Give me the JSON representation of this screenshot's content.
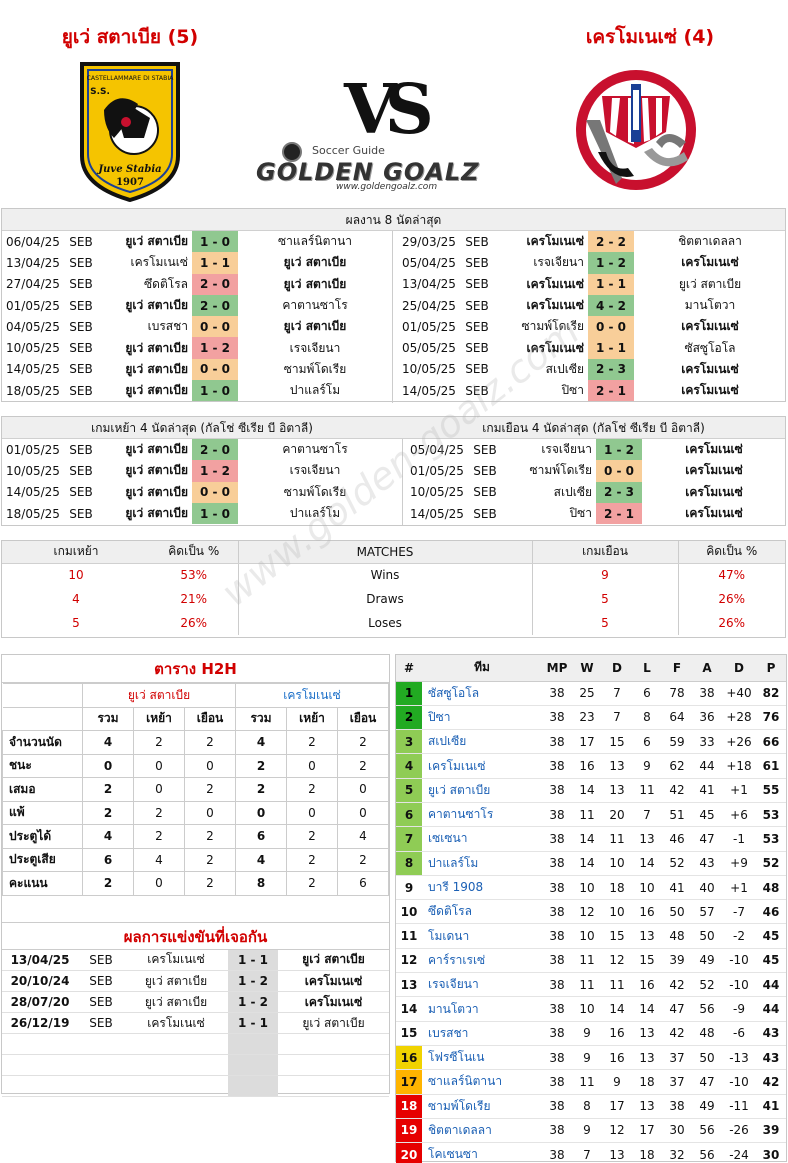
{
  "header": {
    "home_title": "ยูเว่ สตาเบีย (5)",
    "away_title": "เครโมเนเซ่ (4)",
    "home_logo_text_top": "CASTELLAMMARE DI STABIA",
    "home_logo_text_ss": "S.S.",
    "home_logo_text_name": "Juve Stabia",
    "home_logo_text_year": "1907",
    "vs": "VS",
    "brand_sub": "Soccer Guide",
    "brand_main": "GOLDEN GOALZ",
    "brand_url": "www.goldengoalz.com"
  },
  "colors": {
    "win": "#90c890",
    "draw": "#f8ce99",
    "loss": "#f2a1a1",
    "accent_red": "#d10000",
    "link_blue": "#1a5fb4"
  },
  "last8": {
    "title": "ผลงาน 8 นัดล่าสุด",
    "home": [
      {
        "date": "06/04/25",
        "lg": "SEB",
        "t1": "ยูเว่ สตาเบีย",
        "sc": "1 - 0",
        "t2": "ซาแลร์นิตานา",
        "res": "win",
        "b": 1
      },
      {
        "date": "13/04/25",
        "lg": "SEB",
        "t1": "เครโมเนเซ่",
        "sc": "1 - 1",
        "t2": "ยูเว่ สตาเบีย",
        "res": "draw",
        "b": 2
      },
      {
        "date": "27/04/25",
        "lg": "SEB",
        "t1": "ซึดติโรล",
        "sc": "2 - 0",
        "t2": "ยูเว่ สตาเบีย",
        "res": "loss",
        "b": 2
      },
      {
        "date": "01/05/25",
        "lg": "SEB",
        "t1": "ยูเว่ สตาเบีย",
        "sc": "2 - 0",
        "t2": "คาตานซาโร",
        "res": "win",
        "b": 1
      },
      {
        "date": "04/05/25",
        "lg": "SEB",
        "t1": "เบรสชา",
        "sc": "0 - 0",
        "t2": "ยูเว่ สตาเบีย",
        "res": "draw",
        "b": 2
      },
      {
        "date": "10/05/25",
        "lg": "SEB",
        "t1": "ยูเว่ สตาเบีย",
        "sc": "1 - 2",
        "t2": "เรจเจียนา",
        "res": "loss",
        "b": 1
      },
      {
        "date": "14/05/25",
        "lg": "SEB",
        "t1": "ยูเว่ สตาเบีย",
        "sc": "0 - 0",
        "t2": "ซามพ์โดเรีย",
        "res": "draw",
        "b": 1
      },
      {
        "date": "18/05/25",
        "lg": "SEB",
        "t1": "ยูเว่ สตาเบีย",
        "sc": "1 - 0",
        "t2": "ปาแลร์โม",
        "res": "win",
        "b": 1
      }
    ],
    "away": [
      {
        "date": "29/03/25",
        "lg": "SEB",
        "t1": "เครโมเนเซ่",
        "sc": "2 - 2",
        "t2": "ชิตตาเดลลา",
        "res": "draw",
        "b": 1
      },
      {
        "date": "05/04/25",
        "lg": "SEB",
        "t1": "เรจเจียนา",
        "sc": "1 - 2",
        "t2": "เครโมเนเซ่",
        "res": "win",
        "b": 2
      },
      {
        "date": "13/04/25",
        "lg": "SEB",
        "t1": "เครโมเนเซ่",
        "sc": "1 - 1",
        "t2": "ยูเว่ สตาเบีย",
        "res": "draw",
        "b": 1
      },
      {
        "date": "25/04/25",
        "lg": "SEB",
        "t1": "เครโมเนเซ่",
        "sc": "4 - 2",
        "t2": "มานโตวา",
        "res": "win",
        "b": 1
      },
      {
        "date": "01/05/25",
        "lg": "SEB",
        "t1": "ซามพ์โดเรีย",
        "sc": "0 - 0",
        "t2": "เครโมเนเซ่",
        "res": "draw",
        "b": 2
      },
      {
        "date": "05/05/25",
        "lg": "SEB",
        "t1": "เครโมเนเซ่",
        "sc": "1 - 1",
        "t2": "ซัสซูโอโล",
        "res": "draw",
        "b": 1
      },
      {
        "date": "10/05/25",
        "lg": "SEB",
        "t1": "สเปเซีย",
        "sc": "2 - 3",
        "t2": "เครโมเนเซ่",
        "res": "win",
        "b": 2
      },
      {
        "date": "14/05/25",
        "lg": "SEB",
        "t1": "ปิซา",
        "sc": "2 - 1",
        "t2": "เครโมเนเซ่",
        "res": "loss",
        "b": 2
      }
    ]
  },
  "last4": {
    "home_title": "เกมเหย้า 4 นัดล่าสุด (กัลโช่ ซีเรีย บี อิตาลี)",
    "away_title": "เกมเยือน 4 นัดล่าสุด (กัลโช่ ซีเรีย บี อิตาลี)",
    "home": [
      {
        "date": "01/05/25",
        "lg": "SEB",
        "t1": "ยูเว่ สตาเบีย",
        "sc": "2 - 0",
        "t2": "คาตานซาโร",
        "res": "win",
        "b": 1
      },
      {
        "date": "10/05/25",
        "lg": "SEB",
        "t1": "ยูเว่ สตาเบีย",
        "sc": "1 - 2",
        "t2": "เรจเจียนา",
        "res": "loss",
        "b": 1
      },
      {
        "date": "14/05/25",
        "lg": "SEB",
        "t1": "ยูเว่ สตาเบีย",
        "sc": "0 - 0",
        "t2": "ซามพ์โดเรีย",
        "res": "draw",
        "b": 1
      },
      {
        "date": "18/05/25",
        "lg": "SEB",
        "t1": "ยูเว่ สตาเบีย",
        "sc": "1 - 0",
        "t2": "ปาแลร์โม",
        "res": "win",
        "b": 1
      }
    ],
    "away": [
      {
        "date": "05/04/25",
        "lg": "SEB",
        "t1": "เรจเจียนา",
        "sc": "1 - 2",
        "t2": "เครโมเนเซ่",
        "res": "win",
        "b": 2
      },
      {
        "date": "01/05/25",
        "lg": "SEB",
        "t1": "ซามพ์โดเรีย",
        "sc": "0 - 0",
        "t2": "เครโมเนเซ่",
        "res": "draw",
        "b": 2
      },
      {
        "date": "10/05/25",
        "lg": "SEB",
        "t1": "สเปเซีย",
        "sc": "2 - 3",
        "t2": "เครโมเนเซ่",
        "res": "win",
        "b": 2
      },
      {
        "date": "14/05/25",
        "lg": "SEB",
        "t1": "ปิซา",
        "sc": "2 - 1",
        "t2": "เครโมเนเซ่",
        "res": "loss",
        "b": 2
      }
    ]
  },
  "summary": {
    "headers": [
      "เกมเหย้า",
      "คิดเป็น %",
      "MATCHES",
      "เกมเยือน",
      "คิดเป็น %"
    ],
    "rows": [
      {
        "hn": "10",
        "hp": "53%",
        "label": "Wins",
        "an": "9",
        "ap": "47%"
      },
      {
        "hn": "4",
        "hp": "21%",
        "label": "Draws",
        "an": "5",
        "ap": "26%"
      },
      {
        "hn": "5",
        "hp": "26%",
        "label": "Loses",
        "an": "5",
        "ap": "26%"
      }
    ]
  },
  "h2h": {
    "title": "ตาราง H2H",
    "home_name": "ยูเว่ สตาเบีย",
    "away_name": "เครโมเนเซ่",
    "cols": [
      "รวม",
      "เหย้า",
      "เยือน",
      "รวม",
      "เหย้า",
      "เยือน"
    ],
    "rows": [
      {
        "label": "จำนวนนัด",
        "v": [
          "4",
          "2",
          "2",
          "4",
          "2",
          "2"
        ]
      },
      {
        "label": "ชนะ",
        "v": [
          "0",
          "0",
          "0",
          "2",
          "0",
          "2"
        ]
      },
      {
        "label": "เสมอ",
        "v": [
          "2",
          "0",
          "2",
          "2",
          "2",
          "0"
        ]
      },
      {
        "label": "แพ้",
        "v": [
          "2",
          "2",
          "0",
          "0",
          "0",
          "0"
        ]
      },
      {
        "label": "ประตูได้",
        "v": [
          "4",
          "2",
          "2",
          "6",
          "2",
          "4"
        ]
      },
      {
        "label": "ประตูเสีย",
        "v": [
          "6",
          "4",
          "2",
          "4",
          "2",
          "2"
        ]
      },
      {
        "label": "คะแนน",
        "v": [
          "2",
          "0",
          "2",
          "8",
          "2",
          "6"
        ]
      }
    ],
    "meet_title": "ผลการแข่งขันที่เจอกัน",
    "meetings": [
      {
        "date": "13/04/25",
        "lg": "SEB",
        "t1": "เครโมเนเซ่",
        "sc": "1 - 1",
        "t2": "ยูเว่ สตาเบีย",
        "b": 2
      },
      {
        "date": "20/10/24",
        "lg": "SEB",
        "t1": "ยูเว่ สตาเบีย",
        "sc": "1 - 2",
        "t2": "เครโมเนเซ่",
        "b": 2
      },
      {
        "date": "28/07/20",
        "lg": "SEB",
        "t1": "ยูเว่ สตาเบีย",
        "sc": "1 - 2",
        "t2": "เครโมเนเซ่",
        "b": 2
      },
      {
        "date": "26/12/19",
        "lg": "SEB",
        "t1": "เครโมเนเซ่",
        "sc": "1 - 1",
        "t2": "ยูเว่ สตาเบีย",
        "b": 0
      }
    ]
  },
  "standings": {
    "headers": [
      "#",
      "ทีม",
      "MP",
      "W",
      "D",
      "L",
      "F",
      "A",
      "D",
      "P"
    ],
    "rows": [
      {
        "r": "1",
        "team": "ซัสซูโอโล",
        "mp": "38",
        "w": "25",
        "d": "7",
        "l": "6",
        "f": "78",
        "a": "38",
        "gd": "+40",
        "p": "82",
        "zone": "z-g"
      },
      {
        "r": "2",
        "team": "ปิซา",
        "mp": "38",
        "w": "23",
        "d": "7",
        "l": "8",
        "f": "64",
        "a": "36",
        "gd": "+28",
        "p": "76",
        "zone": "z-g"
      },
      {
        "r": "3",
        "team": "สเปเซีย",
        "mp": "38",
        "w": "17",
        "d": "15",
        "l": "6",
        "f": "59",
        "a": "33",
        "gd": "+26",
        "p": "66",
        "zone": "z-lg"
      },
      {
        "r": "4",
        "team": "เครโมเนเซ่",
        "mp": "38",
        "w": "16",
        "d": "13",
        "l": "9",
        "f": "62",
        "a": "44",
        "gd": "+18",
        "p": "61",
        "zone": "z-lg"
      },
      {
        "r": "5",
        "team": "ยูเว่ สตาเบีย",
        "mp": "38",
        "w": "14",
        "d": "13",
        "l": "11",
        "f": "42",
        "a": "41",
        "gd": "+1",
        "p": "55",
        "zone": "z-lg"
      },
      {
        "r": "6",
        "team": "คาตานซาโร",
        "mp": "38",
        "w": "11",
        "d": "20",
        "l": "7",
        "f": "51",
        "a": "45",
        "gd": "+6",
        "p": "53",
        "zone": "z-lg"
      },
      {
        "r": "7",
        "team": "เซเซนา",
        "mp": "38",
        "w": "14",
        "d": "11",
        "l": "13",
        "f": "46",
        "a": "47",
        "gd": "-1",
        "p": "53",
        "zone": "z-lg"
      },
      {
        "r": "8",
        "team": "ปาแลร์โม",
        "mp": "38",
        "w": "14",
        "d": "10",
        "l": "14",
        "f": "52",
        "a": "43",
        "gd": "+9",
        "p": "52",
        "zone": "z-lg"
      },
      {
        "r": "9",
        "team": "บารี 1908",
        "mp": "38",
        "w": "10",
        "d": "18",
        "l": "10",
        "f": "41",
        "a": "40",
        "gd": "+1",
        "p": "48",
        "zone": ""
      },
      {
        "r": "10",
        "team": "ซึดติโรล",
        "mp": "38",
        "w": "12",
        "d": "10",
        "l": "16",
        "f": "50",
        "a": "57",
        "gd": "-7",
        "p": "46",
        "zone": ""
      },
      {
        "r": "11",
        "team": "โมเดนา",
        "mp": "38",
        "w": "10",
        "d": "15",
        "l": "13",
        "f": "48",
        "a": "50",
        "gd": "-2",
        "p": "45",
        "zone": ""
      },
      {
        "r": "12",
        "team": "คาร์ราเรเซ่",
        "mp": "38",
        "w": "11",
        "d": "12",
        "l": "15",
        "f": "39",
        "a": "49",
        "gd": "-10",
        "p": "45",
        "zone": ""
      },
      {
        "r": "13",
        "team": "เรจเจียนา",
        "mp": "38",
        "w": "11",
        "d": "11",
        "l": "16",
        "f": "42",
        "a": "52",
        "gd": "-10",
        "p": "44",
        "zone": ""
      },
      {
        "r": "14",
        "team": "มานโตวา",
        "mp": "38",
        "w": "10",
        "d": "14",
        "l": "14",
        "f": "47",
        "a": "56",
        "gd": "-9",
        "p": "44",
        "zone": ""
      },
      {
        "r": "15",
        "team": "เบรสชา",
        "mp": "38",
        "w": "9",
        "d": "16",
        "l": "13",
        "f": "42",
        "a": "48",
        "gd": "-6",
        "p": "43",
        "zone": ""
      },
      {
        "r": "16",
        "team": "โฟรซีโนเน",
        "mp": "38",
        "w": "9",
        "d": "16",
        "l": "13",
        "f": "37",
        "a": "50",
        "gd": "-13",
        "p": "43",
        "zone": "z-y"
      },
      {
        "r": "17",
        "team": "ซาแลร์นิตานา",
        "mp": "38",
        "w": "11",
        "d": "9",
        "l": "18",
        "f": "37",
        "a": "47",
        "gd": "-10",
        "p": "42",
        "zone": "z-o"
      },
      {
        "r": "18",
        "team": "ซามพ์โดเรีย",
        "mp": "38",
        "w": "8",
        "d": "17",
        "l": "13",
        "f": "38",
        "a": "49",
        "gd": "-11",
        "p": "41",
        "zone": "z-r"
      },
      {
        "r": "19",
        "team": "ชิตตาเดลลา",
        "mp": "38",
        "w": "9",
        "d": "12",
        "l": "17",
        "f": "30",
        "a": "56",
        "gd": "-26",
        "p": "39",
        "zone": "z-r"
      },
      {
        "r": "20",
        "team": "โคเซนซา",
        "mp": "38",
        "w": "7",
        "d": "13",
        "l": "18",
        "f": "32",
        "a": "56",
        "gd": "-24",
        "p": "30",
        "zone": "z-r"
      }
    ]
  },
  "watermark": "www.golden-goalz.com"
}
